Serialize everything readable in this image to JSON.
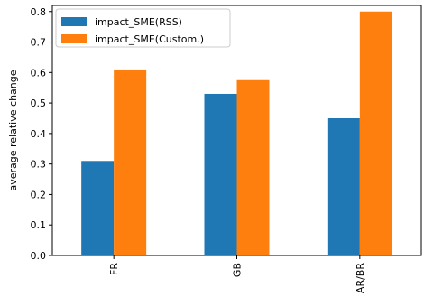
{
  "chart_data": {
    "type": "bar",
    "categories": [
      "FR",
      "GB",
      "AR/BR"
    ],
    "series": [
      {
        "name": "impact_SME(RSS)",
        "values": [
          0.31,
          0.53,
          0.45
        ],
        "color": "#1f77b4"
      },
      {
        "name": "impact_SME(Custom.)",
        "values": [
          0.61,
          0.575,
          0.8
        ],
        "color": "#ff7f0e"
      }
    ],
    "title": "",
    "xlabel": "",
    "ylabel": "average relative change",
    "ylim": [
      0,
      0.82
    ],
    "yticks": [
      0.0,
      0.1,
      0.2,
      0.3,
      0.4,
      0.5,
      0.6,
      0.7,
      0.8
    ],
    "ytick_labels": [
      "0.0",
      "0.1",
      "0.2",
      "0.3",
      "0.4",
      "0.5",
      "0.6",
      "0.7",
      "0.8"
    ],
    "grid": false,
    "legend_position": "top-left"
  }
}
